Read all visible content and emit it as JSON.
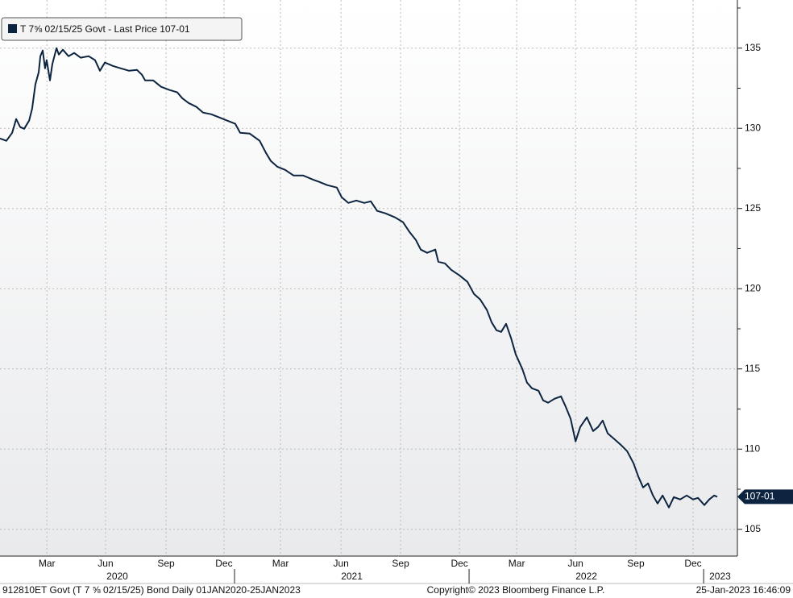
{
  "chart_data": {
    "type": "line",
    "x": [
      2020.0,
      2020.027,
      2020.052,
      2020.069,
      2020.086,
      2020.103,
      2020.124,
      2020.137,
      2020.151,
      2020.165,
      2020.172,
      2020.182,
      2020.192,
      2020.199,
      2020.213,
      2020.223,
      2020.241,
      2020.251,
      2020.268,
      2020.292,
      2020.316,
      2020.344,
      2020.378,
      2020.405,
      2020.426,
      2020.447,
      2020.481,
      2020.515,
      2020.55,
      2020.584,
      2020.605,
      2020.619,
      2020.653,
      2020.687,
      2020.722,
      2020.756,
      2020.777,
      2020.804,
      2020.838,
      2020.866,
      2020.9,
      2020.935,
      2020.969,
      2021.003,
      2021.024,
      2021.065,
      2021.107,
      2021.134,
      2021.155,
      2021.182,
      2021.216,
      2021.251,
      2021.292,
      2021.333,
      2021.361,
      2021.395,
      2021.436,
      2021.457,
      2021.485,
      2021.519,
      2021.553,
      2021.581,
      2021.608,
      2021.643,
      2021.684,
      2021.718,
      2021.746,
      2021.773,
      2021.794,
      2021.821,
      2021.856,
      2021.869,
      2021.897,
      2021.924,
      2021.959,
      2021.993,
      2022.021,
      2022.048,
      2022.076,
      2022.096,
      2022.117,
      2022.137,
      2022.158,
      2022.179,
      2022.199,
      2022.227,
      2022.247,
      2022.268,
      2022.296,
      2022.316,
      2022.337,
      2022.364,
      2022.392,
      2022.412,
      2022.433,
      2022.454,
      2022.474,
      2022.502,
      2022.529,
      2022.55,
      2022.57,
      2022.591,
      2022.619,
      2022.646,
      2022.674,
      2022.701,
      2022.722,
      2022.742,
      2022.763,
      2022.784,
      2022.804,
      2022.825,
      2022.852,
      2022.873,
      2022.9,
      2022.928,
      2022.955,
      2022.976,
      2023.003,
      2023.024,
      2023.045,
      2023.058
    ],
    "series": [
      {
        "name": "T 7⅝ 02/15/25 Govt - Last Price 107-01",
        "color": "#0d2440",
        "values": [
          129.37,
          129.22,
          129.72,
          130.58,
          130.08,
          129.97,
          130.48,
          131.23,
          132.74,
          133.49,
          134.5,
          134.85,
          133.74,
          134.25,
          132.99,
          133.99,
          135,
          134.6,
          134.9,
          134.5,
          134.7,
          134.4,
          134.5,
          134.25,
          133.59,
          134.1,
          133.89,
          133.74,
          133.59,
          133.64,
          133.34,
          132.99,
          132.99,
          132.59,
          132.39,
          132.24,
          131.88,
          131.58,
          131.33,
          130.98,
          130.88,
          130.68,
          130.48,
          130.28,
          129.72,
          129.67,
          129.22,
          128.47,
          127.96,
          127.61,
          127.41,
          127.06,
          127.06,
          126.81,
          126.66,
          126.46,
          126.31,
          125.7,
          125.35,
          125.5,
          125.35,
          125.45,
          124.85,
          124.7,
          124.45,
          124.15,
          123.54,
          123.04,
          122.44,
          122.24,
          122.44,
          121.68,
          121.58,
          121.18,
          120.83,
          120.43,
          119.67,
          119.32,
          118.67,
          117.91,
          117.41,
          117.31,
          117.81,
          116.91,
          115.9,
          115.0,
          114.15,
          113.79,
          113.64,
          113.04,
          112.89,
          113.14,
          113.29,
          112.64,
          111.88,
          110.48,
          111.38,
          111.98,
          111.13,
          111.38,
          111.78,
          110.98,
          110.63,
          110.28,
          109.87,
          109.12,
          108.27,
          107.61,
          107.86,
          107.11,
          106.61,
          107.11,
          106.36,
          107.01,
          106.86,
          107.11,
          106.86,
          106.96,
          106.51,
          106.86,
          107.11,
          107.03
        ]
      }
    ],
    "last_price_label": {
      "value": 107.03,
      "label": "107-01"
    },
    "xlim": [
      2020.0,
      2023.144
    ],
    "xticks": [
      {
        "value": 2020.2,
        "label": "Mar"
      },
      {
        "value": 2020.45,
        "label": "Jun"
      },
      {
        "value": 2020.708,
        "label": "Sep"
      },
      {
        "value": 2020.955,
        "label": "Dec"
      },
      {
        "value": 2021.196,
        "label": "Mar"
      },
      {
        "value": 2021.454,
        "label": "Jun"
      },
      {
        "value": 2021.708,
        "label": "Sep"
      },
      {
        "value": 2021.959,
        "label": "Dec"
      },
      {
        "value": 2022.203,
        "label": "Mar"
      },
      {
        "value": 2022.454,
        "label": "Jun"
      },
      {
        "value": 2022.711,
        "label": "Sep"
      },
      {
        "value": 2022.955,
        "label": "Dec"
      }
    ],
    "year_labels": [
      {
        "value": 2020.5,
        "label": "2020"
      },
      {
        "value": 2021.5,
        "label": "2021"
      },
      {
        "value": 2022.5,
        "label": "2022"
      },
      {
        "value": 2023.07,
        "label": "2023"
      }
    ],
    "year_separators": [
      2021,
      2022,
      2023
    ],
    "ylim": [
      103.33,
      138.0
    ],
    "yticks": [
      105,
      110,
      115,
      120,
      125,
      130,
      135
    ],
    "y_minor_ticks": [
      107.5,
      112.5,
      117.5,
      122.5,
      127.5,
      132.5,
      137.5
    ],
    "grid": true,
    "footer": {
      "left": "912810ET Govt (T 7 ⅝ 02/15/25) Bond  Daily 01JAN2020-25JAN2023",
      "center": "Copyright© 2023 Bloomberg Finance L.P.",
      "right": "25-Jan-2023 16:46:09"
    }
  }
}
